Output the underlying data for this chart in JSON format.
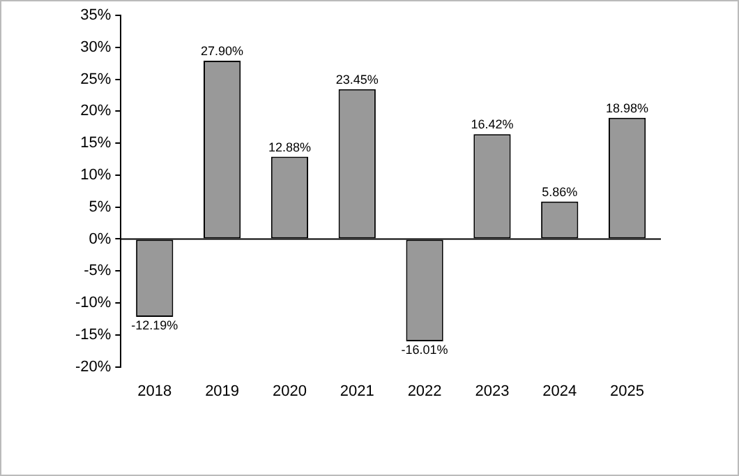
{
  "chart_data": {
    "type": "bar",
    "categories": [
      "2018",
      "2019",
      "2020",
      "2021",
      "2022",
      "2023",
      "2024",
      "2025"
    ],
    "values": [
      -12.19,
      27.9,
      12.88,
      23.45,
      -16.01,
      16.42,
      5.86,
      18.98
    ],
    "color": "#999999",
    "value_labels": [
      "-12.19%",
      "27.90%",
      "12.88%",
      "23.45%",
      "-16.01%",
      "16.42%",
      "5.86%",
      "18.98%"
    ],
    "ylim": [
      -20,
      35
    ],
    "yticks": [
      {
        "value": -20,
        "label": "-20%"
      },
      {
        "value": -15,
        "label": "-15%"
      },
      {
        "value": -10,
        "label": "-10%"
      },
      {
        "value": -5,
        "label": "-5%"
      },
      {
        "value": 0,
        "label": "0%"
      },
      {
        "value": 5,
        "label": "5%"
      },
      {
        "value": 10,
        "label": "10%"
      },
      {
        "value": 15,
        "label": "15%"
      },
      {
        "value": 20,
        "label": "20%"
      },
      {
        "value": 25,
        "label": "25%"
      },
      {
        "value": 30,
        "label": "30%"
      },
      {
        "value": 35,
        "label": "35%"
      }
    ],
    "ref_lines": [
      {
        "axis": "y",
        "value": 0,
        "color": "#000000"
      }
    ],
    "grid": false,
    "legend": false
  }
}
